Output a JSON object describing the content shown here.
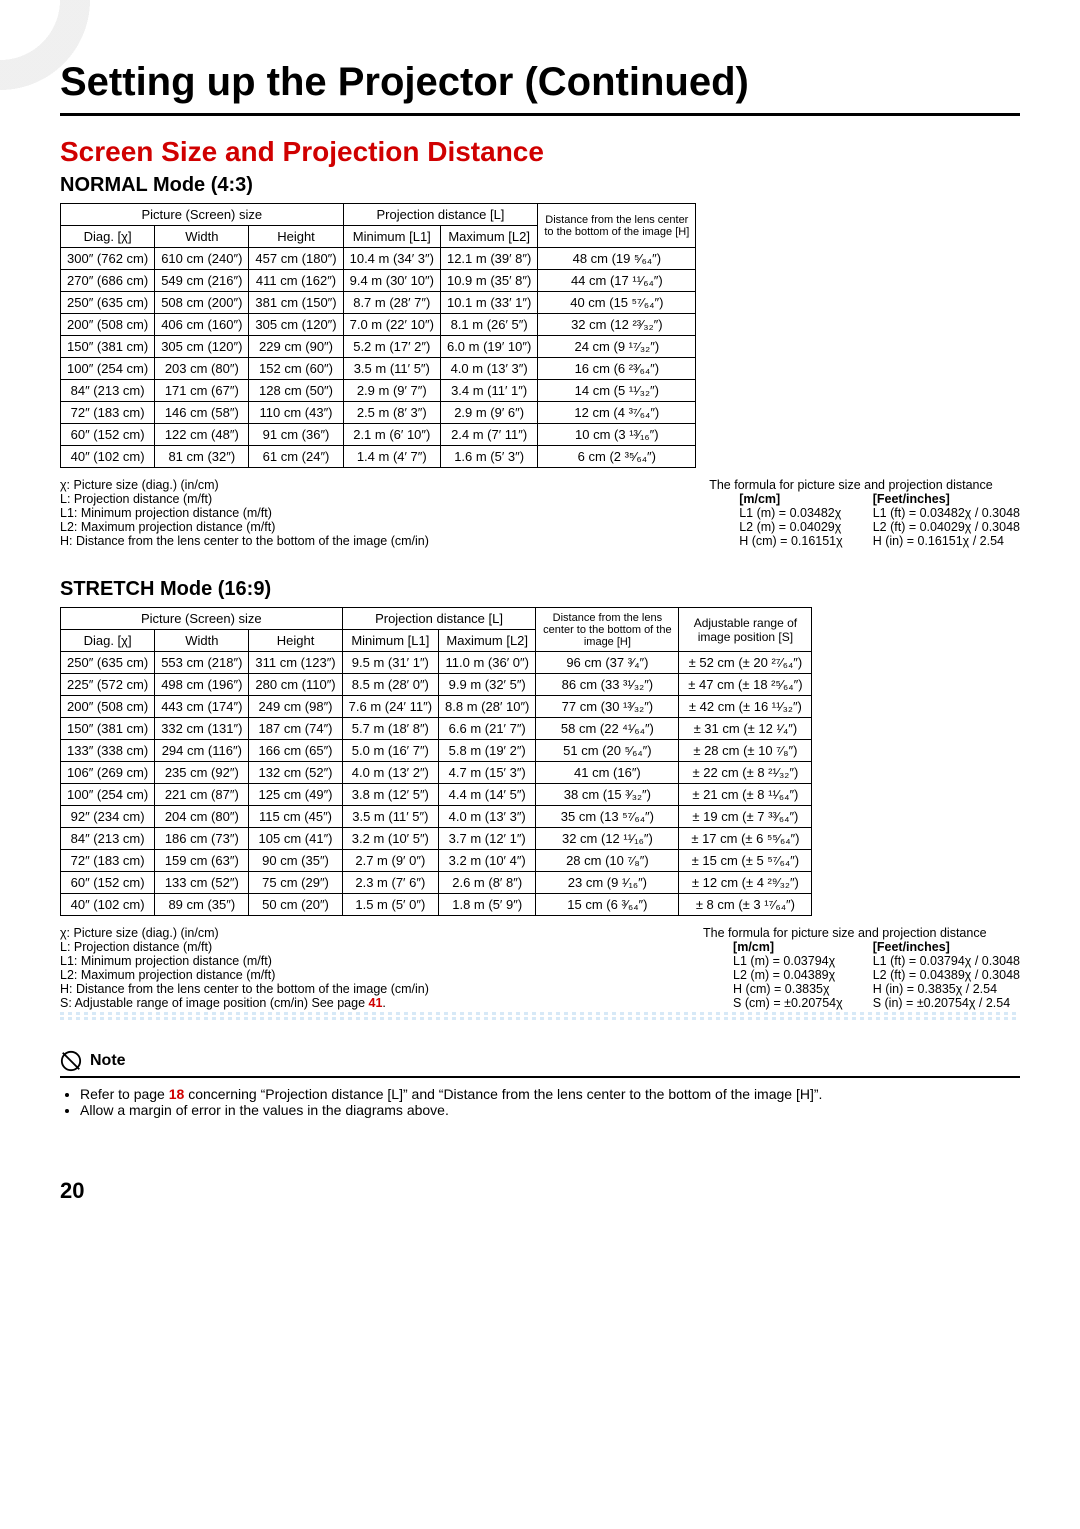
{
  "main_title": "Setting up the Projector (Continued)",
  "section_title": "Screen Size and Projection Distance",
  "normal": {
    "heading": "NORMAL Mode (4:3)",
    "headers": {
      "pic": "Picture (Screen) size",
      "proj": "Projection distance [L]",
      "h": "Distance from the lens center to the bottom of the image [H]",
      "diag": "Diag. [χ]",
      "width": "Width",
      "height": "Height",
      "l1": "Minimum [L1]",
      "l2": "Maximum [L2]"
    },
    "rows": [
      [
        "300″ (762 cm)",
        "610 cm (240″)",
        "457 cm (180″)",
        "10.4 m (34′ 3″)",
        "12.1 m (39′ 8″)",
        "48 cm (19 ⁵⁄₆₄″)"
      ],
      [
        "270″ (686 cm)",
        "549 cm (216″)",
        "411 cm (162″)",
        "9.4 m (30′ 10″)",
        "10.9 m (35′ 8″)",
        "44 cm (17 ¹¹⁄₆₄″)"
      ],
      [
        "250″ (635 cm)",
        "508 cm (200″)",
        "381 cm (150″)",
        "8.7 m (28′ 7″)",
        "10.1 m (33′ 1″)",
        "40 cm (15 ⁵⁷⁄₆₄″)"
      ],
      [
        "200″ (508 cm)",
        "406 cm (160″)",
        "305 cm (120″)",
        "7.0 m (22′ 10″)",
        "8.1 m (26′ 5″)",
        "32 cm (12 ²³⁄₃₂″)"
      ],
      [
        "150″ (381 cm)",
        "305 cm (120″)",
        "229 cm (90″)",
        "5.2 m (17′ 2″)",
        "6.0 m (19′ 10″)",
        "24 cm (9 ¹⁷⁄₃₂″)"
      ],
      [
        "100″ (254 cm)",
        "203 cm (80″)",
        "152 cm (60″)",
        "3.5 m (11′ 5″)",
        "4.0 m (13′ 3″)",
        "16 cm (6 ²³⁄₆₄″)"
      ],
      [
        "84″ (213 cm)",
        "171 cm (67″)",
        "128 cm (50″)",
        "2.9 m (9′ 7″)",
        "3.4 m (11′ 1″)",
        "14 cm (5 ¹¹⁄₃₂″)"
      ],
      [
        "72″ (183 cm)",
        "146 cm (58″)",
        "110 cm (43″)",
        "2.5 m (8′ 3″)",
        "2.9 m (9′ 6″)",
        "12 cm (4 ³⁷⁄₆₄″)"
      ],
      [
        "60″ (152 cm)",
        "122 cm (48″)",
        "91 cm (36″)",
        "2.1 m (6′ 10″)",
        "2.4 m (7′ 11″)",
        "10 cm (3 ¹³⁄₁₆″)"
      ],
      [
        "40″ (102 cm)",
        "81 cm (32″)",
        "61 cm (24″)",
        "1.4 m (4′ 7″)",
        "1.6 m (5′ 3″)",
        "6 cm (2 ³⁵⁄₆₄″)"
      ]
    ]
  },
  "stretch": {
    "heading": "STRETCH Mode (16:9)",
    "headers": {
      "pic": "Picture (Screen) size",
      "proj": "Projection distance [L]",
      "h": "Distance from the lens center to the bottom of the image [H]",
      "s": "Adjustable range of image position [S]",
      "diag": "Diag. [χ]",
      "width": "Width",
      "height": "Height",
      "l1": "Minimum [L1]",
      "l2": "Maximum [L2]"
    },
    "rows": [
      [
        "250″ (635 cm)",
        "553 cm (218″)",
        "311 cm (123″)",
        "9.5 m (31′ 1″)",
        "11.0 m (36′ 0″)",
        "96 cm (37 ³⁄₄″)",
        "± 52 cm (± 20 ²⁷⁄₆₄″)"
      ],
      [
        "225″ (572 cm)",
        "498 cm (196″)",
        "280 cm (110″)",
        "8.5 m (28′ 0″)",
        "9.9 m (32′ 5″)",
        "86 cm (33 ³¹⁄₃₂″)",
        "± 47 cm (± 18 ²⁵⁄₆₄″)"
      ],
      [
        "200″ (508 cm)",
        "443 cm (174″)",
        "249 cm (98″)",
        "7.6 m (24′ 11″)",
        "8.8 m (28′ 10″)",
        "77 cm (30 ¹³⁄₃₂″)",
        "± 42 cm (± 16 ¹¹⁄₃₂″)"
      ],
      [
        "150″ (381 cm)",
        "332 cm (131″)",
        "187 cm (74″)",
        "5.7 m (18′ 8″)",
        "6.6 m (21′ 7″)",
        "58 cm (22 ⁴¹⁄₆₄″)",
        "± 31 cm (± 12 ¹⁄₄″)"
      ],
      [
        "133″ (338 cm)",
        "294 cm (116″)",
        "166 cm (65″)",
        "5.0 m (16′ 7″)",
        "5.8 m (19′ 2″)",
        "51 cm (20 ⁵⁄₆₄″)",
        "± 28 cm (± 10 ⁷⁄₈″)"
      ],
      [
        "106″ (269 cm)",
        "235 cm (92″)",
        "132 cm (52″)",
        "4.0 m (13′ 2″)",
        "4.7 m (15′ 3″)",
        "41 cm (16″)",
        "± 22 cm (± 8 ²¹⁄₃₂″)"
      ],
      [
        "100″ (254 cm)",
        "221 cm (87″)",
        "125 cm (49″)",
        "3.8 m (12′ 5″)",
        "4.4 m (14′ 5″)",
        "38 cm (15 ³⁄₃₂″)",
        "± 21 cm (± 8 ¹¹⁄₆₄″)"
      ],
      [
        "92″ (234 cm)",
        "204 cm (80″)",
        "115 cm (45″)",
        "3.5 m (11′ 5″)",
        "4.0 m (13′ 3″)",
        "35 cm (13 ⁵⁷⁄₆₄″)",
        "± 19 cm (± 7 ³³⁄₆₄″)"
      ],
      [
        "84″ (213 cm)",
        "186 cm (73″)",
        "105 cm (41″)",
        "3.2 m (10′ 5″)",
        "3.7 m (12′ 1″)",
        "32 cm (12 ¹¹⁄₁₆″)",
        "± 17 cm (± 6 ⁵⁵⁄₆₄″)"
      ],
      [
        "72″ (183 cm)",
        "159 cm (63″)",
        "90 cm (35″)",
        "2.7 m (9′ 0″)",
        "3.2 m (10′ 4″)",
        "28 cm (10 ⁷⁄₈″)",
        "± 15 cm (± 5 ⁵⁷⁄₆₄″)"
      ],
      [
        "60″ (152 cm)",
        "133 cm (52″)",
        "75 cm (29″)",
        "2.3 m (7′ 6″)",
        "2.6 m (8′ 8″)",
        "23 cm (9 ¹⁄₁₆″)",
        "± 12 cm (± 4 ²⁹⁄₃₂″)"
      ],
      [
        "40″ (102 cm)",
        "89 cm (35″)",
        "50 cm (20″)",
        "1.5 m (5′ 0″)",
        "1.8 m (5′ 9″)",
        "15 cm (6 ³⁄₆₄″)",
        "± 8 cm (± 3 ¹⁷⁄₆₄″)"
      ]
    ]
  },
  "legend1": {
    "left": [
      "χ: Picture size (diag.) (in/cm)",
      "L: Projection distance (m/ft)",
      "L1: Minimum projection distance (m/ft)",
      "L2: Maximum projection distance (m/ft)",
      "H: Distance from the lens center to the bottom of the image (cm/in)"
    ],
    "title": "The formula for picture size and projection distance",
    "mcm_h": "[m/cm]",
    "ft_h": "[Feet/inches]",
    "mcm": [
      "L1 (m) = 0.03482χ",
      "L2 (m) = 0.04029χ",
      "H (cm) = 0.16151χ"
    ],
    "ft": [
      "L1 (ft) = 0.03482χ / 0.3048",
      "L2 (ft) = 0.04029χ / 0.3048",
      "H (in) = 0.16151χ / 2.54"
    ]
  },
  "legend2": {
    "left": [
      "χ: Picture size (diag.) (in/cm)",
      "L: Projection distance (m/ft)",
      "L1: Minimum projection distance (m/ft)",
      "L2: Maximum projection distance (m/ft)",
      "H: Distance from the lens center to the bottom of the image (cm/in)",
      "S: Adjustable range of image position (cm/in)   See page 41."
    ],
    "title": "The formula for picture size and projection distance",
    "mcm_h": "[m/cm]",
    "ft_h": "[Feet/inches]",
    "mcm": [
      "L1 (m) = 0.03794χ",
      "L2 (m) = 0.04389χ",
      "H (cm) = 0.3835χ",
      "S (cm) = ±0.20754χ"
    ],
    "ft": [
      "L1 (ft) = 0.03794χ / 0.3048",
      "L2 (ft) = 0.04389χ / 0.3048",
      "H (in) = 0.3835χ / 2.54",
      "S (in) = ±0.20754χ / 2.54"
    ]
  },
  "note": {
    "label": "Note",
    "items": [
      "Refer to page 18 concerning “Projection distance [L]” and “Distance from the lens center to the bottom of the image [H]”.",
      "Allow a margin of error in the values in the diagrams above."
    ]
  },
  "pagenum": "20"
}
